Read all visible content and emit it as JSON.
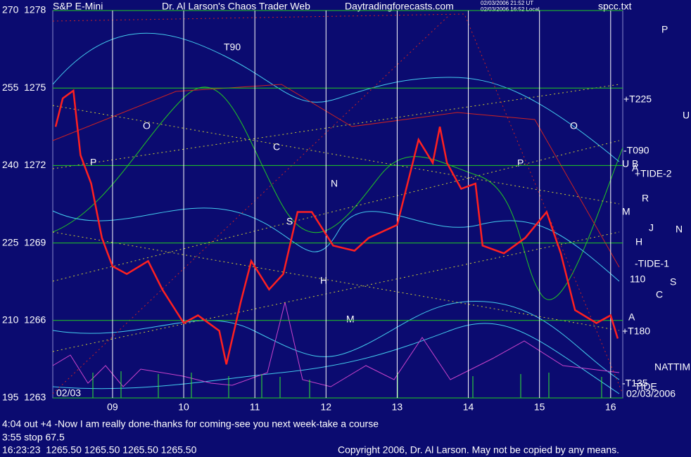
{
  "chart_data": {
    "type": "line",
    "header": {
      "symbol": "S&P E-Mini",
      "title": "Dr. Al Larson's Chaos Trader Web",
      "site": "Daytradingforecasts.com",
      "stamp1": "02/03/2006 21:52 UT",
      "stamp2": "02/03/2006 16:52 Local",
      "file": "spcc.txt"
    },
    "x_start_label": "02/03",
    "x_end_label": "02/03/2006",
    "x": [
      8.2,
      8.3,
      8.45,
      8.55,
      8.7,
      8.85,
      9.0,
      9.2,
      9.5,
      9.7,
      10.0,
      10.2,
      10.5,
      10.6,
      10.8,
      10.95,
      11.2,
      11.4,
      11.6,
      11.8,
      12.1,
      12.4,
      12.6,
      13.0,
      13.3,
      13.5,
      13.6,
      13.7,
      13.9,
      14.1,
      14.2,
      14.5,
      14.8,
      15.1,
      15.3,
      15.5,
      15.8,
      16.0,
      16.1
    ],
    "series": [
      {
        "name": "S&P E-Mini",
        "color": "#ff2020",
        "values": [
          1273.5,
          1274.6,
          1274.9,
          1272.4,
          1271.3,
          1269.2,
          1268.1,
          1267.8,
          1268.3,
          1267.2,
          1265.9,
          1266.2,
          1265.6,
          1264.3,
          1266.7,
          1268.3,
          1267.2,
          1267.8,
          1270.2,
          1270.2,
          1268.9,
          1268.7,
          1269.2,
          1269.7,
          1273.0,
          1272.1,
          1273.5,
          1272.1,
          1271.1,
          1271.3,
          1268.9,
          1268.6,
          1269.2,
          1270.2,
          1268.6,
          1266.4,
          1265.9,
          1266.2,
          1265.3
        ]
      }
    ],
    "xlim": [
      8.16,
      16.17
    ],
    "xticks": [
      {
        "value": 9,
        "label": "09"
      },
      10,
      11,
      12,
      13,
      14,
      15,
      16
    ],
    "ylim": [
      1263,
      1278
    ],
    "yticks": [
      {
        "value": 1263,
        "label": "195  1263"
      },
      {
        "value": 1266,
        "label": "210  1266"
      },
      {
        "value": 1269,
        "label": "225  1269"
      },
      {
        "value": 1272,
        "label": "240  1272"
      },
      {
        "value": 1275,
        "label": "255  1275"
      },
      {
        "value": 1278,
        "label": "270  1278"
      }
    ],
    "grid": true,
    "annotations": [
      "T90",
      "O",
      "P",
      "C",
      "N",
      "S",
      "H",
      "M",
      "O",
      "P",
      "P",
      "+T225",
      "U",
      "-T090",
      "U B",
      "A",
      "+TIDE-2",
      "R",
      "M",
      "J",
      "N",
      "H",
      "-TIDE-1",
      "110",
      "S",
      "C",
      "A",
      "+T180",
      "NATTIM",
      "-T135",
      "TIDE"
    ],
    "footer": [
      "4:04 out +4 -Now I am really done-thanks for coming-see you next week-take a course",
      "3:55 stop 67.5",
      "16:23:23  1265.50 1265.50 1265.50 1265.50",
      "Copyright 2006, Dr. Al Larson. May not be copied by any means."
    ]
  }
}
